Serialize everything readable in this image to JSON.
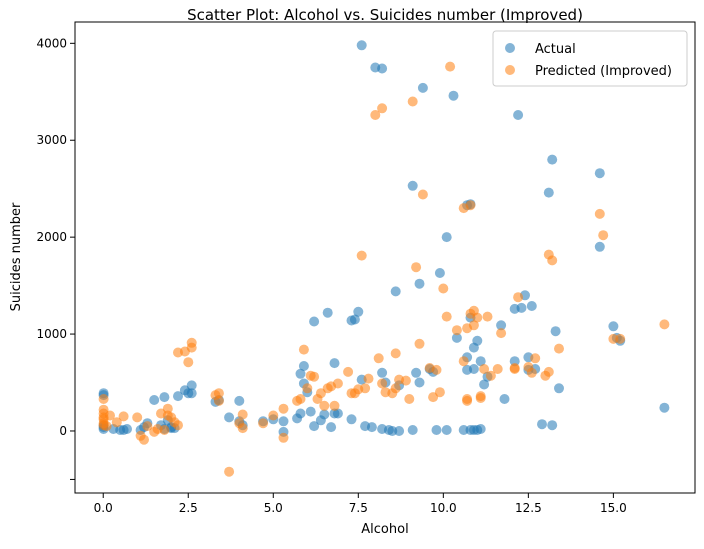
{
  "chart_data": {
    "type": "scatter",
    "title": "Scatter Plot: Alcohol vs. Suicides number (Improved)",
    "xlabel": "Alcohol",
    "ylabel": "Suicides number",
    "xlim": [
      -0.83,
      17.4
    ],
    "ylim": [
      -640,
      4220
    ],
    "xticks": [
      0,
      2.5,
      5,
      7.5,
      10,
      12.5,
      15
    ],
    "xtick_labels": [
      "0.0",
      "2.5",
      "5.0",
      "7.5",
      "10.0",
      "12.5",
      "15.0"
    ],
    "yticks": [
      -500,
      0,
      1000,
      2000,
      3000,
      4000
    ],
    "ytick_labels": [
      "",
      "0",
      "1000",
      "2000",
      "3000",
      "4000"
    ],
    "grid": false,
    "legend_position": "top-right",
    "series": [
      {
        "name": "Actual",
        "color": "#1f77b4",
        "points": [
          [
            0.01,
            390
          ],
          [
            0.01,
            370
          ],
          [
            0.01,
            40
          ],
          [
            0.01,
            60
          ],
          [
            0.01,
            20
          ],
          [
            0.3,
            20
          ],
          [
            0.5,
            10
          ],
          [
            0.6,
            10
          ],
          [
            0.7,
            20
          ],
          [
            1.1,
            10
          ],
          [
            1.2,
            40
          ],
          [
            1.3,
            80
          ],
          [
            1.5,
            320
          ],
          [
            1.7,
            60
          ],
          [
            1.8,
            20
          ],
          [
            1.8,
            350
          ],
          [
            1.9,
            110
          ],
          [
            2.0,
            40
          ],
          [
            2.0,
            30
          ],
          [
            2.1,
            30
          ],
          [
            2.2,
            360
          ],
          [
            2.4,
            420
          ],
          [
            2.5,
            390
          ],
          [
            2.6,
            470
          ],
          [
            2.6,
            390
          ],
          [
            3.3,
            300
          ],
          [
            3.4,
            320
          ],
          [
            3.7,
            140
          ],
          [
            4.0,
            310
          ],
          [
            4.0,
            100
          ],
          [
            4.1,
            60
          ],
          [
            4.7,
            100
          ],
          [
            5.0,
            120
          ],
          [
            5.3,
            100
          ],
          [
            5.3,
            -10
          ],
          [
            5.7,
            130
          ],
          [
            5.8,
            180
          ],
          [
            5.8,
            590
          ],
          [
            5.9,
            670
          ],
          [
            5.9,
            490
          ],
          [
            6.0,
            400
          ],
          [
            6.1,
            200
          ],
          [
            6.2,
            50
          ],
          [
            6.2,
            1130
          ],
          [
            6.4,
            110
          ],
          [
            6.5,
            170
          ],
          [
            6.6,
            1220
          ],
          [
            6.7,
            40
          ],
          [
            6.8,
            180
          ],
          [
            6.8,
            700
          ],
          [
            6.9,
            180
          ],
          [
            7.3,
            1140
          ],
          [
            7.3,
            120
          ],
          [
            7.4,
            1150
          ],
          [
            7.5,
            1230
          ],
          [
            7.6,
            530
          ],
          [
            7.6,
            3980
          ],
          [
            7.7,
            50
          ],
          [
            7.9,
            40
          ],
          [
            8.0,
            3750
          ],
          [
            8.2,
            20
          ],
          [
            8.2,
            600
          ],
          [
            8.2,
            3740
          ],
          [
            8.3,
            500
          ],
          [
            8.4,
            10
          ],
          [
            8.5,
            0
          ],
          [
            8.6,
            1440
          ],
          [
            8.7,
            470
          ],
          [
            8.7,
            0
          ],
          [
            9.1,
            10
          ],
          [
            9.1,
            2530
          ],
          [
            9.2,
            600
          ],
          [
            9.3,
            1520
          ],
          [
            9.3,
            500
          ],
          [
            9.4,
            3540
          ],
          [
            9.6,
            640
          ],
          [
            9.7,
            610
          ],
          [
            9.8,
            10
          ],
          [
            9.9,
            1630
          ],
          [
            10.1,
            2000
          ],
          [
            10.1,
            10
          ],
          [
            10.3,
            3460
          ],
          [
            10.4,
            960
          ],
          [
            10.6,
            10
          ],
          [
            10.7,
            630
          ],
          [
            10.7,
            760
          ],
          [
            10.7,
            2330
          ],
          [
            10.8,
            2340
          ],
          [
            10.8,
            1170
          ],
          [
            10.8,
            10
          ],
          [
            10.9,
            860
          ],
          [
            10.9,
            640
          ],
          [
            10.9,
            10
          ],
          [
            11.0,
            930
          ],
          [
            11.0,
            10
          ],
          [
            11.1,
            20
          ],
          [
            11.1,
            720
          ],
          [
            11.2,
            480
          ],
          [
            11.3,
            560
          ],
          [
            11.7,
            1090
          ],
          [
            11.8,
            330
          ],
          [
            12.1,
            1260
          ],
          [
            12.1,
            720
          ],
          [
            12.2,
            3260
          ],
          [
            12.3,
            1270
          ],
          [
            12.4,
            1400
          ],
          [
            12.5,
            630
          ],
          [
            12.5,
            760
          ],
          [
            12.6,
            1290
          ],
          [
            12.7,
            640
          ],
          [
            12.9,
            70
          ],
          [
            13.1,
            2460
          ],
          [
            13.2,
            2800
          ],
          [
            13.2,
            60
          ],
          [
            13.3,
            1030
          ],
          [
            13.4,
            440
          ],
          [
            14.6,
            1900
          ],
          [
            14.6,
            2660
          ],
          [
            15.0,
            1080
          ],
          [
            15.1,
            960
          ],
          [
            15.2,
            930
          ],
          [
            16.5,
            240
          ]
        ]
      },
      {
        "name": "Predicted (Improved)",
        "color": "#ff7f0e",
        "points": [
          [
            0.01,
            330
          ],
          [
            0.01,
            220
          ],
          [
            0.01,
            180
          ],
          [
            0.01,
            140
          ],
          [
            0.01,
            120
          ],
          [
            0.01,
            80
          ],
          [
            0.01,
            60
          ],
          [
            0.1,
            50
          ],
          [
            0.2,
            160
          ],
          [
            0.4,
            90
          ],
          [
            0.6,
            150
          ],
          [
            1.0,
            140
          ],
          [
            1.1,
            -50
          ],
          [
            1.2,
            -90
          ],
          [
            1.3,
            50
          ],
          [
            1.5,
            -10
          ],
          [
            1.6,
            20
          ],
          [
            1.7,
            180
          ],
          [
            1.8,
            10
          ],
          [
            1.9,
            230
          ],
          [
            1.9,
            160
          ],
          [
            2.0,
            140
          ],
          [
            2.1,
            90
          ],
          [
            2.2,
            60
          ],
          [
            2.2,
            810
          ],
          [
            2.4,
            820
          ],
          [
            2.5,
            710
          ],
          [
            2.6,
            860
          ],
          [
            2.6,
            910
          ],
          [
            3.3,
            370
          ],
          [
            3.4,
            390
          ],
          [
            3.4,
            310
          ],
          [
            3.7,
            -420
          ],
          [
            4.0,
            80
          ],
          [
            4.1,
            170
          ],
          [
            4.1,
            30
          ],
          [
            4.7,
            80
          ],
          [
            5.0,
            160
          ],
          [
            5.3,
            230
          ],
          [
            5.3,
            -70
          ],
          [
            5.7,
            310
          ],
          [
            5.8,
            330
          ],
          [
            5.9,
            840
          ],
          [
            6.0,
            440
          ],
          [
            6.1,
            570
          ],
          [
            6.2,
            560
          ],
          [
            6.3,
            330
          ],
          [
            6.4,
            390
          ],
          [
            6.5,
            260
          ],
          [
            6.6,
            440
          ],
          [
            6.7,
            460
          ],
          [
            6.8,
            260
          ],
          [
            6.9,
            490
          ],
          [
            7.2,
            610
          ],
          [
            7.3,
            390
          ],
          [
            7.4,
            390
          ],
          [
            7.5,
            430
          ],
          [
            7.6,
            1810
          ],
          [
            7.7,
            440
          ],
          [
            7.8,
            540
          ],
          [
            8.0,
            3260
          ],
          [
            8.1,
            750
          ],
          [
            8.2,
            490
          ],
          [
            8.2,
            3330
          ],
          [
            8.3,
            400
          ],
          [
            8.5,
            390
          ],
          [
            8.6,
            440
          ],
          [
            8.6,
            800
          ],
          [
            8.7,
            530
          ],
          [
            8.9,
            520
          ],
          [
            9.0,
            330
          ],
          [
            9.1,
            3400
          ],
          [
            9.2,
            1690
          ],
          [
            9.3,
            900
          ],
          [
            9.4,
            2440
          ],
          [
            9.6,
            650
          ],
          [
            9.7,
            350
          ],
          [
            9.8,
            630
          ],
          [
            9.9,
            400
          ],
          [
            10.0,
            1470
          ],
          [
            10.1,
            1180
          ],
          [
            10.2,
            3760
          ],
          [
            10.4,
            1040
          ],
          [
            10.6,
            2300
          ],
          [
            10.6,
            720
          ],
          [
            10.7,
            310
          ],
          [
            10.7,
            330
          ],
          [
            10.7,
            1060
          ],
          [
            10.8,
            2330
          ],
          [
            10.8,
            1210
          ],
          [
            10.9,
            1240
          ],
          [
            10.9,
            1090
          ],
          [
            11.0,
            1170
          ],
          [
            11.1,
            340
          ],
          [
            11.1,
            360
          ],
          [
            11.2,
            640
          ],
          [
            11.3,
            1180
          ],
          [
            11.4,
            570
          ],
          [
            11.6,
            640
          ],
          [
            11.7,
            1010
          ],
          [
            12.1,
            650
          ],
          [
            12.1,
            640
          ],
          [
            12.2,
            1380
          ],
          [
            12.5,
            660
          ],
          [
            12.6,
            600
          ],
          [
            12.7,
            750
          ],
          [
            13.0,
            570
          ],
          [
            13.1,
            610
          ],
          [
            13.1,
            1820
          ],
          [
            13.2,
            1760
          ],
          [
            13.4,
            850
          ],
          [
            14.6,
            2240
          ],
          [
            14.7,
            2020
          ],
          [
            15.0,
            950
          ],
          [
            15.2,
            950
          ],
          [
            16.5,
            1100
          ]
        ]
      }
    ]
  }
}
